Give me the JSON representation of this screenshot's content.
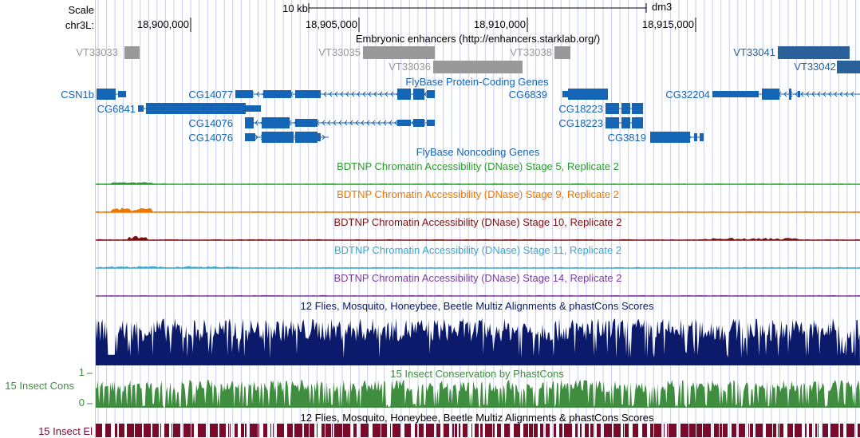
{
  "scale": {
    "label": "Scale",
    "length": "10 kb",
    "assembly": "dm3"
  },
  "ruler": {
    "chrom": "chr3L:",
    "ticks": [
      "18,900,000",
      "18,905,000",
      "18,910,000",
      "18,915,000"
    ]
  },
  "colors": {
    "gene": "#1565b6",
    "enhancer_gray": "#999999",
    "enhancer_blue": "#2a619a",
    "stage5": "#2c9d2c",
    "stage9": "#ee7700",
    "stage10": "#7c1010",
    "stage11": "#3ba6d1",
    "stage14": "#7b3e9e",
    "multiz": "#0b1a6a",
    "phastcons": "#3f8d3f",
    "elements": "#7a0a2a",
    "grid": "#c8cef0",
    "left_border": "#f3b8b8"
  },
  "tracks": {
    "enhancers": {
      "title": "Embryonic enhancers (http://enhancers.starklab.org/)",
      "items": [
        "VT33033",
        "VT33035",
        "VT33036",
        "VT33038",
        "VT33041",
        "VT33042"
      ]
    },
    "coding": {
      "title": "FlyBase Protein-Coding Genes",
      "genes": [
        "CSN1b",
        "CG6841",
        "CG14077",
        "CG14076",
        "CG14076",
        "CG6839",
        "CG18223",
        "CG18223",
        "CG3819",
        "CG32204"
      ]
    },
    "noncoding": {
      "title": "FlyBase Noncoding Genes"
    },
    "dnase": [
      {
        "title": "BDTNP Chromatin Accessibility (DNase) Stage 5, Replicate 2"
      },
      {
        "title": "BDTNP Chromatin Accessibility (DNase) Stage 9, Replicate 2"
      },
      {
        "title": "BDTNP Chromatin Accessibility (DNase) Stage 10, Replicate 2"
      },
      {
        "title": "BDTNP Chromatin Accessibility (DNase) Stage 11, Replicate 2"
      },
      {
        "title": "BDTNP Chromatin Accessibility (DNase) Stage 14, Replicate 2"
      }
    ],
    "multiz": {
      "title": "12 Flies, Mosquito, Honeybee, Beetle Multiz Alignments & phastCons Scores"
    },
    "phastcons": {
      "title": "15 Insect Conservation by PhastCons",
      "side_label": "15 Insect Cons",
      "max": "1",
      "min": "0"
    },
    "elements": {
      "title": "12 Flies, Mosquito, Honeybee, Beetle Multiz Alignments & phastCons Scores",
      "side_label": "15 Insect El"
    }
  }
}
